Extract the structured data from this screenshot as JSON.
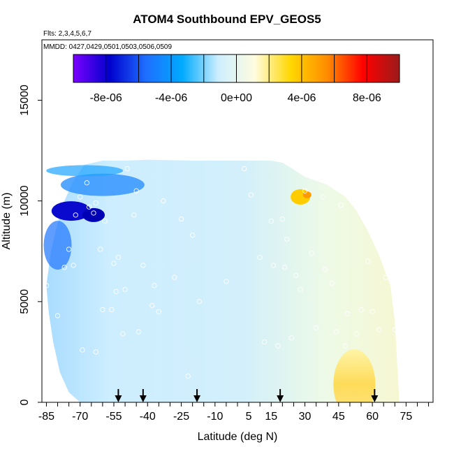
{
  "chart_data": {
    "type": "heatmap",
    "title": "ATOM4 Southbound EPV_GEOS5",
    "flights_label": "Flts: 2,3,4,5,6,7",
    "dates_label": "MMDD: 0427,0429,0501,0503,0506,0509",
    "xlabel": "Latitude (deg N)",
    "ylabel": "Altitude (m)",
    "xlim": [
      -87,
      87
    ],
    "ylim": [
      0,
      18000
    ],
    "x_ticks": [
      -85,
      -70,
      -55,
      -40,
      -25,
      -10,
      5,
      15,
      30,
      45,
      60,
      75
    ],
    "y_ticks": [
      0,
      5000,
      10000,
      15000
    ],
    "colorbar": {
      "ticks": [
        "-8e-06",
        "-4e-06",
        "0e+00",
        "4e-06",
        "8e-06"
      ],
      "tick_values": [
        -8e-06,
        -4e-06,
        0,
        4e-06,
        8e-06
      ],
      "range": [
        -1e-05,
        1e-05
      ],
      "colors": [
        "#7a00ff",
        "#0000cc",
        "#1e6eff",
        "#00aaff",
        "#cdeeff",
        "#fffce0",
        "#ffd700",
        "#ff8c00",
        "#ff0000",
        "#9b1b1b"
      ]
    },
    "arrow_latitudes": [
      -53,
      -42,
      -18,
      19,
      61
    ],
    "observation_points": [
      [
        -84,
        9500
      ],
      [
        -85,
        5800
      ],
      [
        -80,
        4300
      ],
      [
        -77,
        6700
      ],
      [
        -75,
        7600
      ],
      [
        -73,
        6800
      ],
      [
        -72,
        9300
      ],
      [
        -70,
        10200
      ],
      [
        -69,
        2600
      ],
      [
        -67,
        10900
      ],
      [
        -66,
        9700
      ],
      [
        -64,
        9400
      ],
      [
        -63,
        9900
      ],
      [
        -63,
        2500
      ],
      [
        -61,
        7600
      ],
      [
        -60,
        4600
      ],
      [
        -59,
        9000
      ],
      [
        -56,
        4600
      ],
      [
        -55,
        6900
      ],
      [
        -54,
        5500
      ],
      [
        -53,
        7200
      ],
      [
        -51,
        3400
      ],
      [
        -50,
        5600
      ],
      [
        -49,
        11600
      ],
      [
        -46,
        9300
      ],
      [
        -45,
        10500
      ],
      [
        -44,
        3500
      ],
      [
        -42,
        6800
      ],
      [
        -38,
        4800
      ],
      [
        -37,
        5800
      ],
      [
        -35,
        4500
      ],
      [
        -33,
        10000
      ],
      [
        -28,
        6200
      ],
      [
        -25,
        9100
      ],
      [
        -22,
        1300
      ],
      [
        -20,
        8300
      ],
      [
        -17,
        5000
      ],
      [
        -5,
        6000
      ],
      [
        3,
        11600
      ],
      [
        6,
        10300
      ],
      [
        10,
        7200
      ],
      [
        12,
        3000
      ],
      [
        15,
        9000
      ],
      [
        16,
        6800
      ],
      [
        18,
        2800
      ],
      [
        20,
        9100
      ],
      [
        21,
        6700
      ],
      [
        22,
        8100
      ],
      [
        24,
        3200
      ],
      [
        26,
        6300
      ],
      [
        28,
        5600
      ],
      [
        30,
        10500
      ],
      [
        33,
        7400
      ],
      [
        35,
        3700
      ],
      [
        38,
        10200
      ],
      [
        39,
        6600
      ],
      [
        42,
        5900
      ],
      [
        44,
        3500
      ],
      [
        46,
        9800
      ],
      [
        48,
        2800
      ],
      [
        49,
        4400
      ],
      [
        53,
        3400
      ],
      [
        55,
        4600
      ],
      [
        56,
        9900
      ],
      [
        58,
        7000
      ],
      [
        60,
        4500
      ],
      [
        63,
        3600
      ],
      [
        66,
        6200
      ],
      [
        70,
        3600
      ]
    ]
  }
}
